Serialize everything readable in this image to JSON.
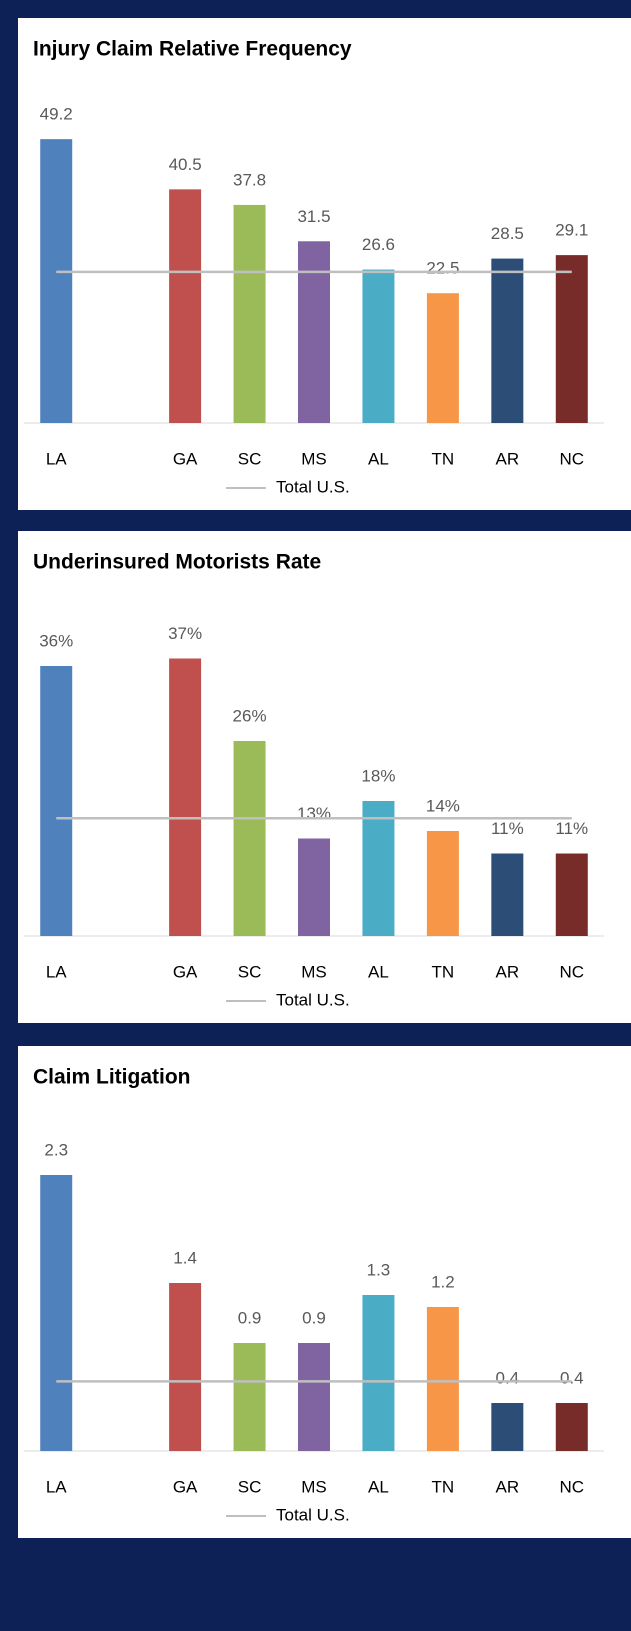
{
  "chart_data": [
    {
      "type": "bar",
      "title": "Injury Claim Relative Frequency",
      "categories": [
        "LA",
        null,
        "GA",
        "SC",
        "MS",
        "AL",
        "TN",
        "AR",
        "NC"
      ],
      "values": [
        49.2,
        null,
        40.5,
        37.8,
        31.5,
        26.6,
        22.5,
        28.5,
        29.1
      ],
      "colors": [
        "#4f81bd",
        null,
        "#c0504d",
        "#9bbb59",
        "#8064a2",
        "#4bacc6",
        "#f79646",
        "#2c4d75",
        "#772c2a"
      ],
      "series": [
        {
          "name": "Total U.S.",
          "type": "line",
          "color": "#bfbfbf",
          "values": [
            26.2,
            26.2,
            26.2,
            26.2,
            26.2,
            26.2,
            26.2,
            26.2,
            26.2
          ]
        }
      ],
      "ylim": [
        0,
        52
      ]
    },
    {
      "type": "bar",
      "title": "Underinsured Motorists Rate",
      "categories": [
        "LA",
        null,
        "GA",
        "SC",
        "MS",
        "AL",
        "TN",
        "AR",
        "NC"
      ],
      "values": [
        36,
        null,
        37,
        26,
        13,
        18,
        14,
        11,
        11
      ],
      "value_labels": [
        "36%",
        null,
        "37%",
        "26%",
        "13%",
        "18%",
        "14%",
        "11%",
        "11%"
      ],
      "colors": [
        "#4f81bd",
        null,
        "#c0504d",
        "#9bbb59",
        "#8064a2",
        "#4bacc6",
        "#f79646",
        "#2c4d75",
        "#772c2a"
      ],
      "series": [
        {
          "name": "Total U.S.",
          "type": "line",
          "color": "#bfbfbf",
          "values": [
            15.7,
            15.7,
            15.7,
            15.7,
            15.7,
            15.7,
            15.7,
            15.7,
            15.7
          ]
        }
      ],
      "ylim": [
        0,
        40
      ]
    },
    {
      "type": "bar",
      "title": "Claim Litigation",
      "categories": [
        "LA",
        null,
        "GA",
        "SC",
        "MS",
        "AL",
        "TN",
        "AR",
        "NC"
      ],
      "values": [
        2.3,
        null,
        1.4,
        0.9,
        0.9,
        1.3,
        1.2,
        0.4,
        0.4
      ],
      "colors": [
        "#4f81bd",
        null,
        "#c0504d",
        "#9bbb59",
        "#8064a2",
        "#4bacc6",
        "#f79646",
        "#2c4d75",
        "#772c2a"
      ],
      "series": [
        {
          "name": "Total U.S.",
          "type": "line",
          "color": "#bfbfbf",
          "values": [
            0.58,
            0.58,
            0.58,
            0.58,
            0.58,
            0.58,
            0.58,
            0.58,
            0.58
          ]
        }
      ],
      "ylim": [
        0,
        2.5
      ]
    }
  ]
}
